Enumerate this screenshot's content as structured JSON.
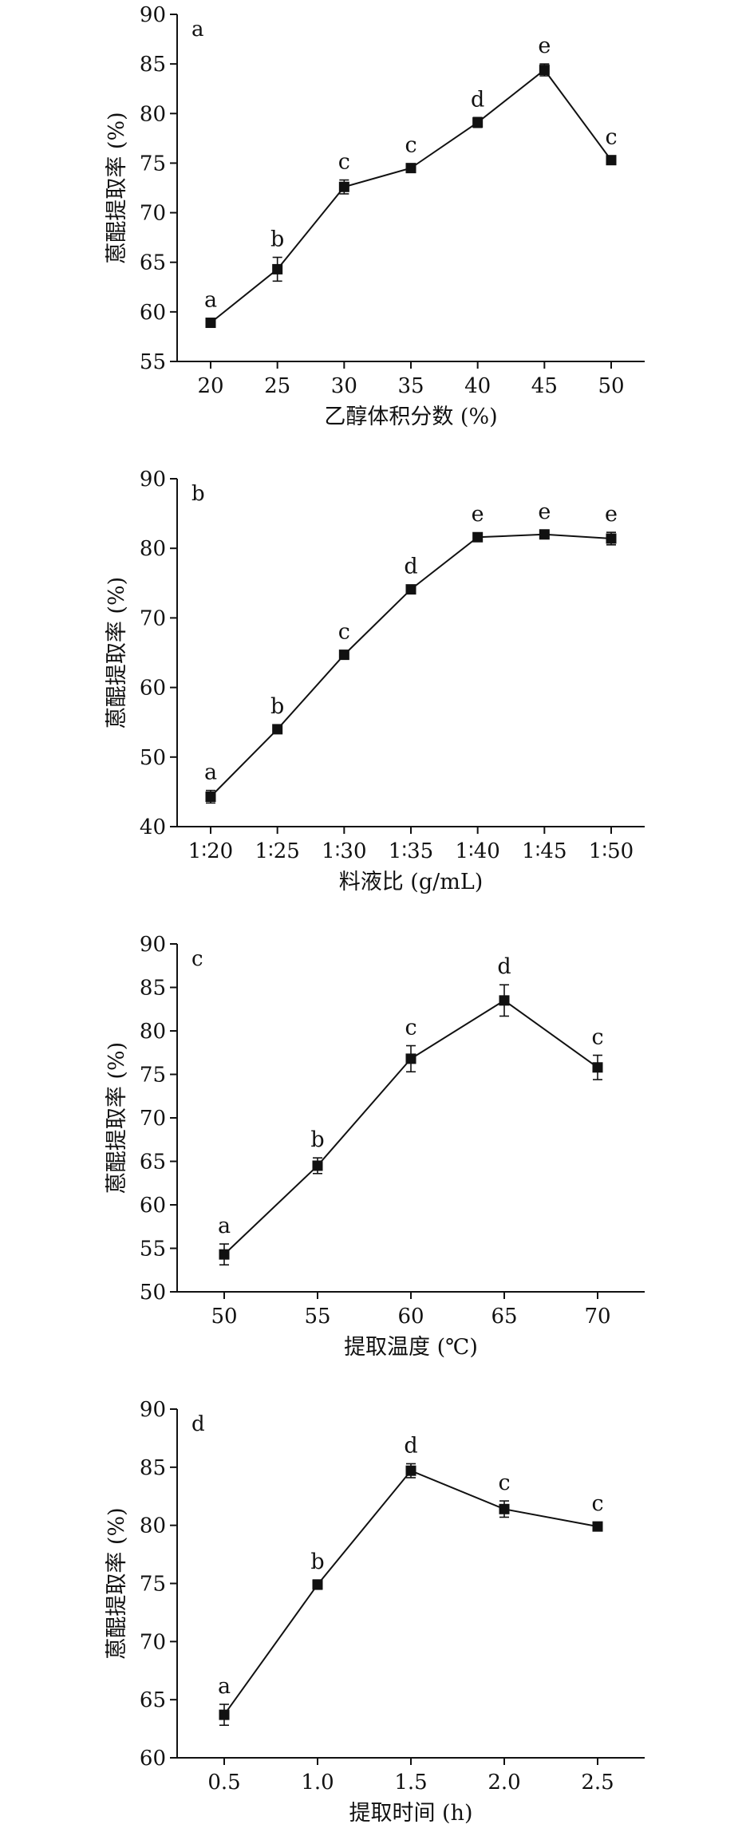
{
  "chart_data": [
    {
      "type": "line",
      "panel_label": "a",
      "xlabel": "乙醇体积分数 (%)",
      "ylabel": "蒽醌提取率 (%)",
      "categories": [
        "20",
        "25",
        "30",
        "35",
        "40",
        "45",
        "50"
      ],
      "values": [
        58.9,
        64.3,
        72.6,
        74.5,
        79.1,
        84.4,
        75.3
      ],
      "errors": [
        0.3,
        1.2,
        0.7,
        0.3,
        0.5,
        0.6,
        0.3
      ],
      "significance": [
        "a",
        "b",
        "c",
        "c",
        "d",
        "e",
        "c"
      ],
      "ylim": [
        55,
        90
      ],
      "yticks": [
        55,
        60,
        65,
        70,
        75,
        80,
        85,
        90
      ],
      "grid": false,
      "legend": "none"
    },
    {
      "type": "line",
      "panel_label": "b",
      "xlabel": "料液比 (g/mL)",
      "ylabel": "蒽醌提取率 (%)",
      "categories": [
        "1∶20",
        "1∶25",
        "1∶30",
        "1∶35",
        "1∶40",
        "1∶45",
        "1∶50"
      ],
      "values": [
        44.3,
        54.0,
        64.7,
        74.1,
        81.6,
        82.0,
        81.4
      ],
      "errors": [
        0.9,
        0.3,
        0.3,
        0.3,
        0.3,
        0.3,
        0.9
      ],
      "significance": [
        "a",
        "b",
        "c",
        "d",
        "e",
        "e",
        "e"
      ],
      "ylim": [
        40,
        90
      ],
      "yticks": [
        40,
        50,
        60,
        70,
        80,
        90
      ],
      "grid": false,
      "legend": "none"
    },
    {
      "type": "line",
      "panel_label": "c",
      "xlabel": "提取温度 (℃)",
      "ylabel": "蒽醌提取率 (%)",
      "categories": [
        "50",
        "55",
        "60",
        "65",
        "70"
      ],
      "values": [
        54.3,
        64.5,
        76.8,
        83.5,
        75.8
      ],
      "errors": [
        1.2,
        0.9,
        1.5,
        1.8,
        1.4
      ],
      "significance": [
        "a",
        "b",
        "c",
        "d",
        "c"
      ],
      "ylim": [
        50,
        90
      ],
      "yticks": [
        50,
        55,
        60,
        65,
        70,
        75,
        80,
        85,
        90
      ],
      "grid": false,
      "legend": "none"
    },
    {
      "type": "line",
      "panel_label": "d",
      "xlabel": "提取时间 (h)",
      "ylabel": "蒽醌提取率 (%)",
      "categories": [
        "0.5",
        "1.0",
        "1.5",
        "2.0",
        "2.5"
      ],
      "values": [
        63.7,
        74.9,
        84.7,
        81.4,
        79.9
      ],
      "errors": [
        0.9,
        0.4,
        0.6,
        0.7,
        0.2
      ],
      "significance": [
        "a",
        "b",
        "d",
        "c",
        "c"
      ],
      "ylim": [
        60,
        90
      ],
      "yticks": [
        60,
        65,
        70,
        75,
        80,
        85,
        90
      ],
      "grid": false,
      "legend": "none"
    }
  ]
}
